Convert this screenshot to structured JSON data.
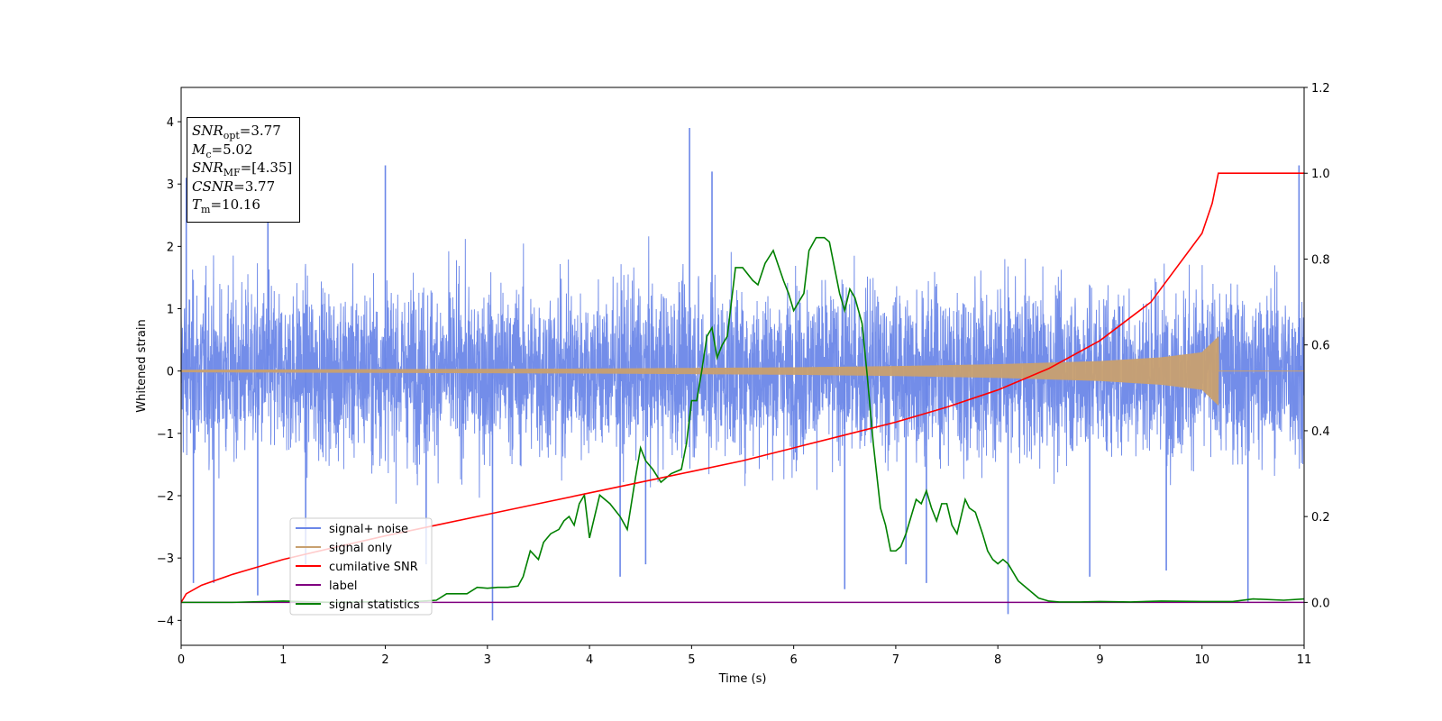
{
  "chart_data": {
    "type": "line",
    "xlabel": "Time (s)",
    "ylabel": "Whitened strain",
    "xlim": [
      0,
      11
    ],
    "ylim_left": [
      -4.4,
      4.55
    ],
    "ylim_right": [
      -0.1,
      1.2
    ],
    "x_ticks": [
      "0",
      "1",
      "2",
      "3",
      "4",
      "5",
      "6",
      "7",
      "8",
      "9",
      "10",
      "11"
    ],
    "y_ticks_left": [
      "−4",
      "−3",
      "−2",
      "−1",
      "0",
      "1",
      "2",
      "3",
      "4"
    ],
    "y_ticks_right": [
      "0.0",
      "0.2",
      "0.4",
      "0.6",
      "0.8",
      "1.0",
      "1.2"
    ],
    "legend_position": "lower-left",
    "info_box": {
      "snr_opt": {
        "name": "SNR",
        "sub": "opt",
        "value": "=3.77"
      },
      "mc": {
        "name": "M",
        "sub": "c",
        "value": "=5.02"
      },
      "snr_mf": {
        "name": "SNR",
        "sub": "MF",
        "value": "=[4.35]"
      },
      "csnr": {
        "name": "CSNR",
        "value": "=3.77"
      },
      "tm": {
        "name": "T",
        "sub": "m",
        "value": "=10.16"
      }
    },
    "series": [
      {
        "name": "signal+ noise",
        "axis": "left",
        "color": "#6b87e8",
        "description": "noisy whitened strain, approx amplitude +/-2.5 with spikes to ~3.9",
        "spikes": [
          [
            0.05,
            3.1
          ],
          [
            0.12,
            -3.4
          ],
          [
            0.32,
            -3.4
          ],
          [
            0.75,
            -3.6
          ],
          [
            0.85,
            3.2
          ],
          [
            1.22,
            -3.1
          ],
          [
            2.0,
            3.3
          ],
          [
            2.4,
            -3.1
          ],
          [
            3.05,
            -4.0
          ],
          [
            4.3,
            -3.3
          ],
          [
            4.55,
            -3.1
          ],
          [
            4.98,
            3.9
          ],
          [
            5.2,
            3.2
          ],
          [
            6.5,
            -3.5
          ],
          [
            7.1,
            -3.1
          ],
          [
            7.3,
            -3.4
          ],
          [
            8.1,
            -3.9
          ],
          [
            8.9,
            -3.3
          ],
          [
            9.65,
            -3.2
          ],
          [
            10.45,
            -3.7
          ],
          [
            10.95,
            3.3
          ]
        ]
      },
      {
        "name": "signal only",
        "axis": "left",
        "color": "#c8a070",
        "envelope": [
          [
            0,
            0.02
          ],
          [
            2,
            0.03
          ],
          [
            4,
            0.04
          ],
          [
            6,
            0.06
          ],
          [
            7,
            0.08
          ],
          [
            8,
            0.11
          ],
          [
            9,
            0.16
          ],
          [
            9.6,
            0.22
          ],
          [
            10.0,
            0.3
          ],
          [
            10.16,
            0.55
          ],
          [
            10.17,
            0
          ],
          [
            11,
            0
          ]
        ]
      },
      {
        "name": "cumilative SNR",
        "axis": "right",
        "color": "#ff0000",
        "x": [
          0.0,
          0.05,
          0.2,
          0.5,
          1.0,
          1.5,
          2.0,
          2.5,
          3.0,
          3.5,
          4.0,
          4.5,
          5.0,
          5.5,
          6.0,
          6.5,
          7.0,
          7.5,
          8.0,
          8.5,
          9.0,
          9.5,
          10.0,
          10.1,
          10.16,
          10.16,
          11.0
        ],
        "y": [
          0.0,
          0.02,
          0.04,
          0.065,
          0.1,
          0.128,
          0.155,
          0.18,
          0.205,
          0.23,
          0.255,
          0.28,
          0.305,
          0.33,
          0.36,
          0.39,
          0.42,
          0.455,
          0.495,
          0.545,
          0.61,
          0.7,
          0.86,
          0.93,
          1.0,
          1.0,
          1.0
        ]
      },
      {
        "name": "label",
        "axis": "right",
        "color": "#800080",
        "x": [
          0,
          11
        ],
        "y": [
          0,
          0
        ]
      },
      {
        "name": "signal statistics",
        "axis": "right",
        "color": "#008000",
        "x": [
          0.0,
          0.5,
          1.0,
          1.5,
          2.0,
          2.3,
          2.5,
          2.6,
          2.7,
          2.8,
          2.9,
          3.0,
          3.1,
          3.2,
          3.3,
          3.35,
          3.42,
          3.5,
          3.55,
          3.62,
          3.7,
          3.75,
          3.8,
          3.85,
          3.9,
          3.95,
          4.0,
          4.1,
          4.2,
          4.3,
          4.37,
          4.45,
          4.5,
          4.55,
          4.62,
          4.7,
          4.8,
          4.9,
          4.95,
          5.0,
          5.05,
          5.1,
          5.15,
          5.2,
          5.25,
          5.3,
          5.35,
          5.43,
          5.5,
          5.6,
          5.65,
          5.72,
          5.8,
          5.9,
          5.95,
          6.0,
          6.05,
          6.1,
          6.15,
          6.22,
          6.3,
          6.35,
          6.45,
          6.5,
          6.55,
          6.6,
          6.67,
          6.72,
          6.78,
          6.85,
          6.9,
          6.95,
          7.0,
          7.05,
          7.1,
          7.2,
          7.25,
          7.3,
          7.35,
          7.4,
          7.45,
          7.5,
          7.55,
          7.6,
          7.68,
          7.72,
          7.78,
          7.85,
          7.9,
          7.95,
          8.0,
          8.05,
          8.1,
          8.15,
          8.2,
          8.3,
          8.4,
          8.5,
          8.6,
          8.8,
          9.0,
          9.3,
          9.6,
          10.0,
          10.3,
          10.5,
          10.8,
          11.0
        ],
        "y": [
          0.0,
          0.0,
          0.003,
          0.0,
          0.002,
          0.002,
          0.005,
          0.02,
          0.02,
          0.02,
          0.035,
          0.033,
          0.035,
          0.035,
          0.038,
          0.06,
          0.12,
          0.1,
          0.14,
          0.16,
          0.17,
          0.19,
          0.2,
          0.18,
          0.23,
          0.25,
          0.15,
          0.25,
          0.23,
          0.2,
          0.17,
          0.29,
          0.36,
          0.33,
          0.31,
          0.28,
          0.3,
          0.31,
          0.37,
          0.47,
          0.47,
          0.54,
          0.62,
          0.64,
          0.57,
          0.6,
          0.62,
          0.78,
          0.78,
          0.75,
          0.74,
          0.79,
          0.82,
          0.75,
          0.72,
          0.68,
          0.7,
          0.72,
          0.82,
          0.85,
          0.85,
          0.84,
          0.72,
          0.68,
          0.73,
          0.71,
          0.65,
          0.53,
          0.37,
          0.22,
          0.18,
          0.12,
          0.12,
          0.13,
          0.16,
          0.24,
          0.23,
          0.26,
          0.22,
          0.19,
          0.23,
          0.23,
          0.18,
          0.16,
          0.24,
          0.22,
          0.21,
          0.16,
          0.12,
          0.1,
          0.09,
          0.1,
          0.09,
          0.07,
          0.05,
          0.03,
          0.01,
          0.003,
          0.001,
          0.001,
          0.002,
          0.001,
          0.003,
          0.002,
          0.002,
          0.008,
          0.005,
          0.008
        ]
      }
    ]
  }
}
